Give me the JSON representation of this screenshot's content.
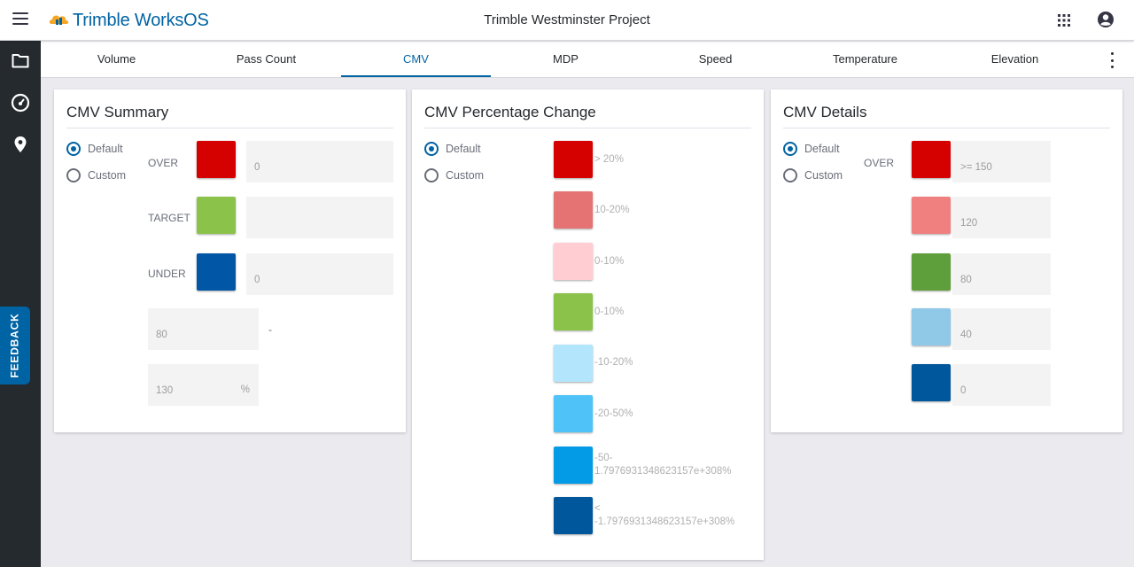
{
  "app": {
    "brand": "Trimble WorksOS",
    "project_title": "Trimble Westminster Project"
  },
  "rail": {
    "feedback_label": "FEEDBACK"
  },
  "tabs": [
    {
      "label": "Volume"
    },
    {
      "label": "Pass Count"
    },
    {
      "label": "CMV"
    },
    {
      "label": "MDP"
    },
    {
      "label": "Speed"
    },
    {
      "label": "Temperature"
    },
    {
      "label": "Elevation"
    }
  ],
  "active_tab": "CMV",
  "summary": {
    "title": "CMV Summary",
    "radio_default": "Default",
    "radio_custom": "Custom",
    "selected": "Default",
    "rows": [
      {
        "label": "OVER",
        "color": "#d50000",
        "value": "0"
      },
      {
        "label": "TARGET",
        "color": "#8bc34a",
        "value": ""
      },
      {
        "label": "UNDER",
        "color": "#0157a5",
        "value": "0"
      }
    ],
    "range_min": "80",
    "range_separator": "-",
    "range_max": "130",
    "range_max_unit": "%"
  },
  "percentage_change": {
    "title": "CMV Percentage Change",
    "radio_default": "Default",
    "radio_custom": "Custom",
    "selected": "Default",
    "items": [
      {
        "color": "#d50000",
        "label": "> 20%"
      },
      {
        "color": "#e57373",
        "label": "10-20%"
      },
      {
        "color": "#ffcdd2",
        "label": "0-10%"
      },
      {
        "color": "#8bc34a",
        "label": "0-10%"
      },
      {
        "color": "#b3e5fc",
        "label": "-10-20%"
      },
      {
        "color": "#4fc3f7",
        "label": "-20-50%"
      },
      {
        "color": "#039be5",
        "label": "-50-\n1.7976931348623157e+308%"
      },
      {
        "color": "#01579b",
        "label": "<\n-1.7976931348623157e+308%"
      }
    ]
  },
  "details": {
    "title": "CMV Details",
    "radio_default": "Default",
    "radio_custom": "Custom",
    "selected": "Default",
    "over_label": "OVER",
    "rows": [
      {
        "color": "#d50000",
        "value": ">= 150"
      },
      {
        "color": "#f08080",
        "value": "120"
      },
      {
        "color": "#5f9f3b",
        "value": "80"
      },
      {
        "color": "#90c8e8",
        "value": "40"
      },
      {
        "color": "#01579b",
        "value": "0"
      }
    ]
  }
}
